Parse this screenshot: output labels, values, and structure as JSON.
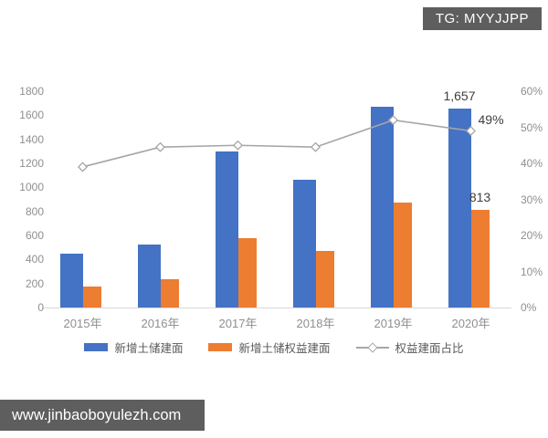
{
  "badge": {
    "text": "TG: MYYJJPP"
  },
  "watermark": {
    "text": "www.jinbaoboyulezh.com"
  },
  "chart_data": {
    "type": "bar",
    "subtype": "grouped-bars-with-line",
    "title": "",
    "categories": [
      "2015年",
      "2016年",
      "2017年",
      "2018年",
      "2019年",
      "2020年"
    ],
    "series": [
      {
        "name": "新增土储建面",
        "type": "bar",
        "axis": "left",
        "color": "#4472c4",
        "values": [
          445,
          525,
          1295,
          1060,
          1670,
          1657
        ]
      },
      {
        "name": "新增土储权益建面",
        "type": "bar",
        "axis": "left",
        "color": "#ed7d31",
        "values": [
          172,
          233,
          580,
          470,
          870,
          813
        ]
      },
      {
        "name": "权益建面占比",
        "type": "line",
        "axis": "right",
        "color": "#a6a6a6",
        "marker": "open-diamond",
        "values": [
          39,
          44.5,
          45,
          44.5,
          52,
          49
        ]
      }
    ],
    "left_axis": {
      "min": 0,
      "max": 1800,
      "step": 200,
      "ticks": [
        "0",
        "200",
        "400",
        "600",
        "800",
        "1000",
        "1200",
        "1400",
        "1600",
        "1800"
      ]
    },
    "right_axis": {
      "min": 0,
      "max": 60,
      "step": 10,
      "ticks": [
        "0%",
        "10%",
        "20%",
        "30%",
        "40%",
        "50%",
        "60%"
      ]
    },
    "annotations": [
      {
        "text": "1,657",
        "series": 0,
        "category": 5
      },
      {
        "text": "813",
        "series": 1,
        "category": 5
      },
      {
        "text": "49%",
        "series": 2,
        "category": 5
      }
    ],
    "gridlines": false,
    "legend_position": "bottom"
  }
}
